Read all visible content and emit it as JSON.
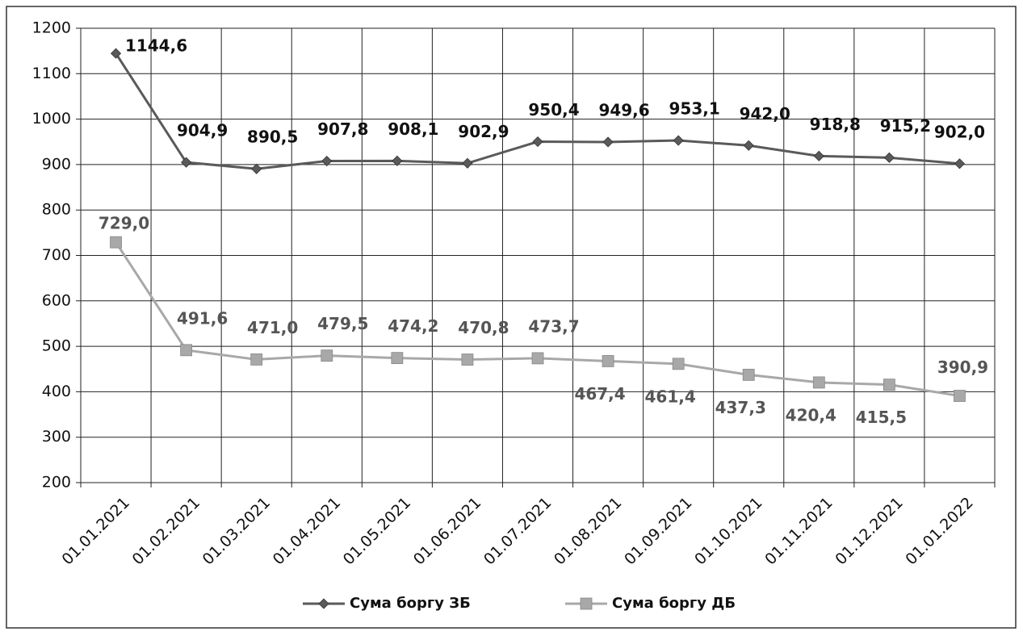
{
  "chart_data": {
    "type": "line",
    "categories": [
      "01.01.2021",
      "01.02.2021",
      "01.03.2021",
      "01.04.2021",
      "01.05.2021",
      "01.06.2021",
      "01.07.2021",
      "01.08.2021",
      "01.09.2021",
      "01.10.2021",
      "01.11.2021",
      "01.12.2021",
      "01.01.2022"
    ],
    "series": [
      {
        "name": "Сума боргу ЗБ",
        "color": "#5a5a5a",
        "marker": "diamond",
        "values": [
          1144.6,
          904.9,
          890.5,
          907.8,
          908.1,
          902.9,
          950.4,
          949.6,
          953.1,
          942.0,
          918.8,
          915.2,
          902.0
        ],
        "value_labels": [
          "1144,6",
          "904,9",
          "890,5",
          "907,8",
          "908,1",
          "902,9",
          "950,4",
          "949,6",
          "953,1",
          "942,0",
          "918,8",
          "915,2",
          "902,0"
        ]
      },
      {
        "name": "Сума боргу ДБ",
        "color": "#a8a8a8",
        "marker": "square",
        "values": [
          729.0,
          491.6,
          471.0,
          479.5,
          474.2,
          470.8,
          473.7,
          467.4,
          461.4,
          437.3,
          420.4,
          415.5,
          390.9
        ],
        "value_labels": [
          "729,0",
          "491,6",
          "471,0",
          "479,5",
          "474,2",
          "470,8",
          "473,7",
          "467,4",
          "461,4",
          "437,3",
          "420,4",
          "415,5",
          "390,9"
        ]
      }
    ],
    "ylim": [
      200,
      1200
    ],
    "yticks": [
      200,
      300,
      400,
      500,
      600,
      700,
      800,
      900,
      1000,
      1100,
      1200
    ],
    "grid": true,
    "legend": "bottom"
  }
}
